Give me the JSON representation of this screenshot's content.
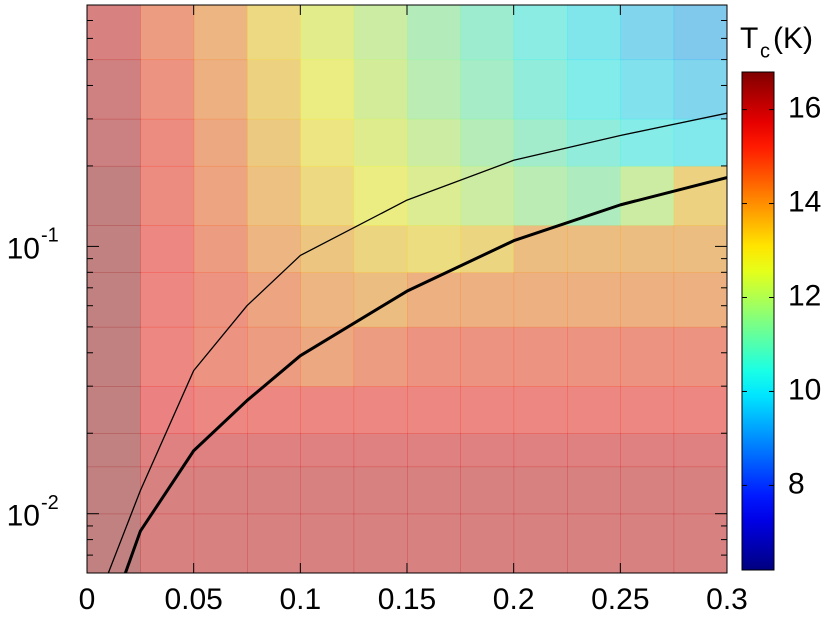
{
  "chart_data": {
    "type": "heatmap",
    "colormap": "jet",
    "cell_opacity": 0.42,
    "xlim": [
      0,
      0.3
    ],
    "ylim": [
      0.006,
      0.8
    ],
    "yscale": "log",
    "xticks": [
      0,
      0.05,
      0.1,
      0.15,
      0.2,
      0.25,
      0.3
    ],
    "yticks": [
      {
        "value": 0.1,
        "label": "10",
        "exponent": "-1"
      },
      {
        "value": 0.01,
        "label": "10",
        "exponent": "-2"
      }
    ],
    "yminor_ticks": [
      0.007,
      0.008,
      0.009,
      0.02,
      0.03,
      0.04,
      0.05,
      0.06,
      0.07,
      0.08,
      0.09,
      0.2,
      0.3,
      0.4,
      0.5,
      0.6,
      0.7,
      0.8
    ],
    "x_edges": [
      0,
      0.025,
      0.05,
      0.075,
      0.1,
      0.125,
      0.15,
      0.175,
      0.2,
      0.225,
      0.25,
      0.275,
      0.3
    ],
    "y_edges": [
      0.006,
      0.01,
      0.015,
      0.02,
      0.03,
      0.05,
      0.08,
      0.12,
      0.2,
      0.3,
      0.5,
      0.8
    ],
    "z": [
      [
        16.5,
        16,
        16,
        16,
        16,
        16,
        16,
        16,
        16,
        16,
        16,
        16
      ],
      [
        16.5,
        16,
        16,
        16,
        16,
        16,
        16,
        16,
        16,
        16,
        16,
        16
      ],
      [
        16.5,
        15.8,
        15.8,
        15.8,
        15.8,
        15.8,
        15.8,
        15.8,
        15.8,
        15.8,
        15.8,
        15.8
      ],
      [
        16.5,
        15.5,
        15.3,
        15.3,
        15.3,
        15.3,
        15.3,
        15.3,
        15.3,
        15.3,
        15.3,
        15.3
      ],
      [
        16.5,
        15.3,
        15,
        14.8,
        14.5,
        14.8,
        15,
        15,
        15,
        15,
        15,
        15
      ],
      [
        16.5,
        15.3,
        15,
        14.6,
        14.2,
        14,
        14.3,
        14.3,
        14.3,
        14.3,
        14.3,
        14.3
      ],
      [
        16.5,
        15.3,
        14.8,
        14.2,
        13.8,
        13.4,
        13.2,
        13.4,
        14,
        14,
        14,
        14
      ],
      [
        16.5,
        15.2,
        14.6,
        13.9,
        13.3,
        12.8,
        12.4,
        12,
        11.6,
        11.3,
        12,
        13.5
      ],
      [
        16.3,
        15.2,
        14.5,
        13.7,
        13,
        12.5,
        12,
        11.5,
        11,
        10.6,
        10.3,
        10.1
      ],
      [
        16.2,
        15,
        14.3,
        13.5,
        12.8,
        12.2,
        11.6,
        11.1,
        10.6,
        10.2,
        9.9,
        9.6
      ],
      [
        16,
        14.8,
        14.2,
        13.3,
        12.6,
        12,
        11.4,
        10.9,
        10.4,
        10,
        9.6,
        9.3
      ]
    ],
    "series": [
      {
        "color": "#000000",
        "x": [
          0.01,
          0.025,
          0.05,
          0.075,
          0.1,
          0.15,
          0.2,
          0.25,
          0.3
        ],
        "values": [
          0.006,
          0.0122,
          0.0343,
          0.06,
          0.0925,
          0.149,
          0.21,
          0.26,
          0.315
        ]
      },
      {
        "color": "#000000",
        "x": [
          0.018,
          0.025,
          0.05,
          0.075,
          0.1,
          0.15,
          0.2,
          0.25,
          0.3
        ],
        "values": [
          0.006,
          0.0086,
          0.0172,
          0.0265,
          0.039,
          0.068,
          0.105,
          0.143,
          0.181
        ]
      }
    ],
    "colorbar": {
      "label": "T",
      "label_sub": "c",
      "label_unit": "(K)",
      "clim": [
        6.2,
        16.8
      ],
      "ticks": [
        8,
        10,
        12,
        14,
        16
      ]
    }
  }
}
